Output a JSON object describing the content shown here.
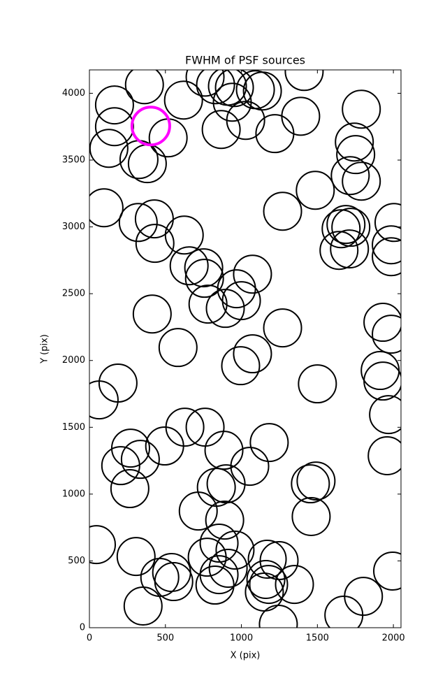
{
  "chart_data": {
    "type": "scatter",
    "title": "FWHM of PSF sources",
    "xlabel": "X (pix)",
    "ylabel": "Y (pix)",
    "xlim": [
      0,
      2050
    ],
    "ylim": [
      0,
      4175
    ],
    "xticks": [
      0,
      500,
      1000,
      1500,
      2000
    ],
    "yticks": [
      0,
      500,
      1000,
      1500,
      2000,
      2500,
      3000,
      3500,
      4000
    ],
    "marker": "open-circle",
    "series": [
      {
        "color": "#000000",
        "linewidth": 2,
        "x": [
          362,
          165,
          165,
          128,
          326,
          381,
          518,
          619,
          96,
          321,
          427,
          431,
          624,
          656,
          752,
          757,
          780,
          894,
          968,
          1000,
          1073,
          413,
          583,
          995,
          1073,
          1271,
          188,
          64,
          628,
          761,
          495,
          271,
          335,
          206,
          266,
          885,
          1055,
          1183,
          835,
          899,
          716,
          890,
          46,
          307,
          463,
          541,
          555,
          353,
          775,
          853,
          958,
          826,
          853,
          913,
          1170,
          1248,
          1161,
          1179,
          1151,
          1349,
          1243,
          1674,
          1803,
          1995,
          1959,
          1968,
          1931,
          1913,
          1931,
          1986,
          1986,
          1986,
          2004,
          1500,
          1454,
          1491,
          1459,
          1642,
          1711,
          1656,
          1720,
          1688,
          1716,
          1789,
          1743,
          1752,
          1789,
          1486,
          1271,
          1390,
          1413,
          1220,
          1028,
          867,
          830,
          908,
          940,
          954,
          1092,
          1138,
          761
        ],
        "y": [
          4064,
          3913,
          3750,
          3588,
          3504,
          3473,
          3666,
          3949,
          3143,
          3033,
          3060,
          2877,
          2939,
          2709,
          2694,
          2615,
          2422,
          2390,
          2537,
          2448,
          2646,
          2348,
          2097,
          1961,
          2050,
          2244,
          1831,
          1705,
          1501,
          1501,
          1360,
          1344,
          1260,
          1213,
          1041,
          1328,
          1208,
          1386,
          1051,
          1077,
          873,
          805,
          622,
          533,
          377,
          413,
          345,
          162,
          528,
          633,
          581,
          319,
          397,
          445,
          513,
          502,
          361,
          324,
          267,
          324,
          26,
          94,
          235,
          424,
          1287,
          1595,
          1846,
          1925,
          2286,
          2197,
          2777,
          2866,
          3033,
          1825,
          1077,
          1098,
          832,
          2824,
          2835,
          2986,
          2997,
          3018,
          3384,
          3342,
          3635,
          3541,
          3881,
          3274,
          3117,
          3828,
          4163,
          3698,
          3797,
          3729,
          4064,
          4053,
          3933,
          4043,
          4027,
          4017,
          4121
        ]
      },
      {
        "color": "#ff00ff",
        "linewidth": 4,
        "x": [
          404
        ],
        "y": [
          3755
        ]
      }
    ]
  }
}
